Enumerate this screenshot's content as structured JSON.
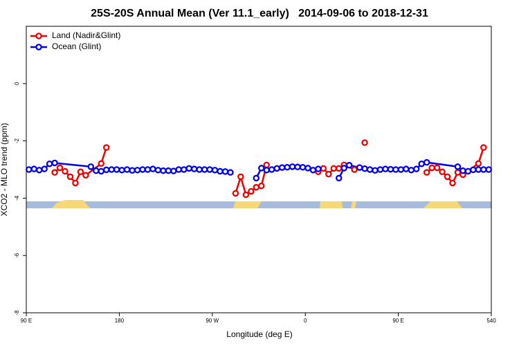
{
  "chart_data": {
    "type": "line",
    "title": "25S-20S Annual Mean (Ver 11.1_early)   2014-09-06 to 2018-12-31",
    "x_label": "Longitude (deg E)",
    "y_label": "XCO2 - MLO trend (ppm)",
    "legend": "top-left",
    "xlim": [
      90,
      540
    ],
    "xticks": [
      {
        "value": 90,
        "label": "90 E"
      },
      180,
      {
        "value": 270,
        "label": "90 W"
      },
      {
        "value": 360,
        "label": "0"
      },
      {
        "value": 450,
        "label": "90 E"
      },
      540
    ],
    "ylim": [
      -8,
      2
    ],
    "yticks": [
      0,
      -2,
      -4,
      -6,
      -8
    ],
    "series": [
      {
        "name": "Land (Nadir&Glint)",
        "color": "#ee0000",
        "x": [
          117.5,
          122.5,
          127.5,
          132.5,
          137.5,
          142.5,
          147.5,
          162.5,
          167.5,
          null,
          292.5,
          297.5,
          302.5,
          307.5,
          312.5,
          317.5,
          322.5,
          null,
          372.5,
          377.5,
          382.5,
          387.5,
          392.5,
          397.5,
          407.5,
          null,
          417.5,
          null,
          477.5,
          482.5,
          487.5,
          492.5,
          497.5,
          502.5,
          507.5,
          512.5,
          527.5,
          532.5
        ],
        "values": [
          -3.1,
          -2.94,
          -3.06,
          -3.25,
          -3.47,
          -3.08,
          -3.2,
          -2.79,
          -2.23,
          null,
          -3.83,
          -3.25,
          -3.88,
          -3.76,
          -3.62,
          -3.57,
          -2.84,
          null,
          -3.08,
          -2.96,
          -3.16,
          -2.96,
          -2.96,
          -2.84,
          -3.0,
          null,
          -2.06,
          null,
          -3.1,
          -2.94,
          -2.94,
          -3.08,
          -3.25,
          -3.47,
          -3.1,
          -3.18,
          -2.79,
          -2.23
        ]
      },
      {
        "name": "Ocean (Glint)",
        "color": "#0000ee",
        "x": [
          92.5,
          97.5,
          102.5,
          107.5,
          112.5,
          117.5,
          152.5,
          157.5,
          162.5,
          167.5,
          172.5,
          177.5,
          182.5,
          187.5,
          192.5,
          197.5,
          202.5,
          207.5,
          212.5,
          217.5,
          222.5,
          227.5,
          232.5,
          237.5,
          242.5,
          247.5,
          252.5,
          257.5,
          262.5,
          267.5,
          272.5,
          277.5,
          282.5,
          287.5,
          null,
          312.5,
          317.5,
          322.5,
          327.5,
          332.5,
          337.5,
          342.5,
          347.5,
          352.5,
          357.5,
          362.5,
          367.5,
          372.5,
          null,
          392.5,
          397.5,
          402.5,
          412.5,
          417.5,
          422.5,
          427.5,
          432.5,
          437.5,
          442.5,
          447.5,
          452.5,
          457.5,
          462.5,
          467.5,
          472.5,
          477.5,
          507.5,
          512.5,
          517.5,
          522.5,
          527.5,
          532.5,
          537.5
        ],
        "values": [
          -3.0,
          -2.98,
          -3.02,
          -2.98,
          -2.8,
          -2.77,
          -2.9,
          -3.04,
          -3.06,
          -3.01,
          -3.0,
          -3.0,
          -3.02,
          -3.0,
          -3.03,
          -3.02,
          -3.0,
          -3.0,
          -2.98,
          -3.02,
          -3.04,
          -3.04,
          -3.05,
          -3.0,
          -3.0,
          -2.96,
          -2.98,
          -3.0,
          -3.0,
          -3.0,
          -3.02,
          -3.06,
          -3.07,
          -3.1,
          null,
          -3.3,
          -2.95,
          -3.02,
          -3.0,
          -2.96,
          -2.93,
          -2.92,
          -2.9,
          -2.91,
          -2.92,
          -2.95,
          -3.02,
          -2.98,
          null,
          -3.3,
          -2.95,
          -2.85,
          -2.93,
          -2.97,
          -3.0,
          -3.03,
          -3.0,
          -2.98,
          -2.99,
          -3.0,
          -3.0,
          -2.98,
          -3.02,
          -2.98,
          -2.8,
          -2.75,
          -2.9,
          -3.04,
          -3.06,
          -3.01,
          -3.0,
          -3.0,
          -3.0
        ]
      }
    ]
  }
}
